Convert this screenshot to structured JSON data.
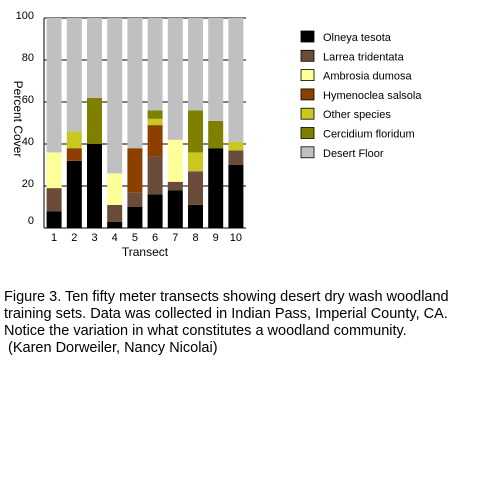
{
  "chart_data": {
    "type": "bar",
    "stacked": true,
    "xlabel": "Transect",
    "ylabel": "Percent Cover",
    "ylim": [
      0,
      100
    ],
    "yticks": [
      0,
      20,
      40,
      60,
      80,
      100
    ],
    "grid": "horizontal",
    "legend_position": "right",
    "categories": [
      "1",
      "2",
      "3",
      "4",
      "5",
      "6",
      "7",
      "8",
      "9",
      "10"
    ],
    "series": [
      {
        "name": "Olneya tesota",
        "color": "#000000",
        "values": [
          8,
          32,
          40,
          3,
          10,
          16,
          18,
          11,
          38,
          30
        ]
      },
      {
        "name": "Larrea tridentata",
        "color": "#6b4c3b",
        "values": [
          11,
          0,
          0,
          8,
          7,
          18,
          4,
          16,
          0,
          7
        ]
      },
      {
        "name": "Ambrosia dumosa",
        "color": "#ffff99",
        "values": [
          17,
          0,
          0,
          15,
          0,
          0,
          20,
          0,
          0,
          0
        ]
      },
      {
        "name": "Hymenoclea salsola",
        "color": "#8b4000",
        "values": [
          0,
          6,
          0,
          0,
          21,
          15,
          0,
          0,
          0,
          0
        ]
      },
      {
        "name": "Other species",
        "color": "#c8c820",
        "values": [
          0,
          8,
          0,
          0,
          0,
          3,
          0,
          9,
          0,
          4
        ]
      },
      {
        "name": "Cercidium floridum",
        "color": "#808000",
        "values": [
          0,
          0,
          22,
          0,
          0,
          4,
          0,
          20,
          13,
          0
        ]
      },
      {
        "name": "Desert Floor",
        "color": "#c0c0c0",
        "values": [
          64,
          54,
          38,
          74,
          62,
          44,
          58,
          44,
          49,
          59
        ]
      }
    ]
  },
  "caption": {
    "line1": "Figure 3.  Ten fifty meter transects showing desert dry wash woodland",
    "line2": "training sets.  Data was collected in Indian Pass, Imperial County, CA.",
    "line3": "Notice the variation in what constitutes a woodland community.",
    "line4": " (Karen Dorweiler, Nancy Nicolai)"
  }
}
